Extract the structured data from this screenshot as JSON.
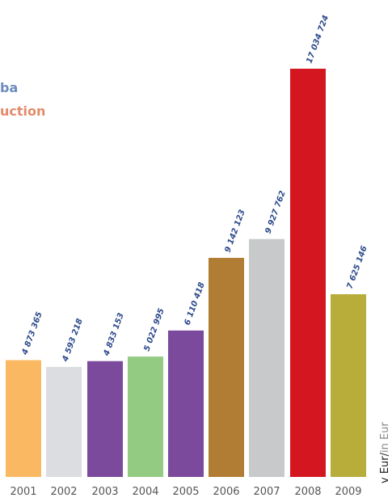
{
  "legend": {
    "line1": "ba",
    "line2": "uction",
    "line1_color": "#6d8bbd",
    "line2_color": "#e38a6a"
  },
  "unit": {
    "primary": "v Eur",
    "separator": "/",
    "secondary": "in Eur",
    "primary_color": "#1a1a1a",
    "secondary_color": "#888888"
  },
  "chart_data": {
    "type": "bar",
    "categories": [
      "2001",
      "2002",
      "2003",
      "2004",
      "2005",
      "2006",
      "2007",
      "2008",
      "2009"
    ],
    "values": [
      4873365,
      4593218,
      4833153,
      5022995,
      6110418,
      9142123,
      9927762,
      17034724,
      7625146
    ],
    "value_labels": [
      "4 873 365",
      "4 593 218",
      "4 833 153",
      "5 022 995",
      "6 110 418",
      "9 142 123",
      "9 927 762",
      "17 034 724",
      "7 625 146"
    ],
    "colors": [
      "#fbb862",
      "#dcdde0",
      "#7b4a9c",
      "#93cb83",
      "#7b4a9c",
      "#b17c34",
      "#c8c9cb",
      "#d3161f",
      "#b8ad3a"
    ],
    "title": "",
    "xlabel": "",
    "ylabel": "",
    "label_color": "#2c4a8c",
    "tick_color": "#555555"
  }
}
